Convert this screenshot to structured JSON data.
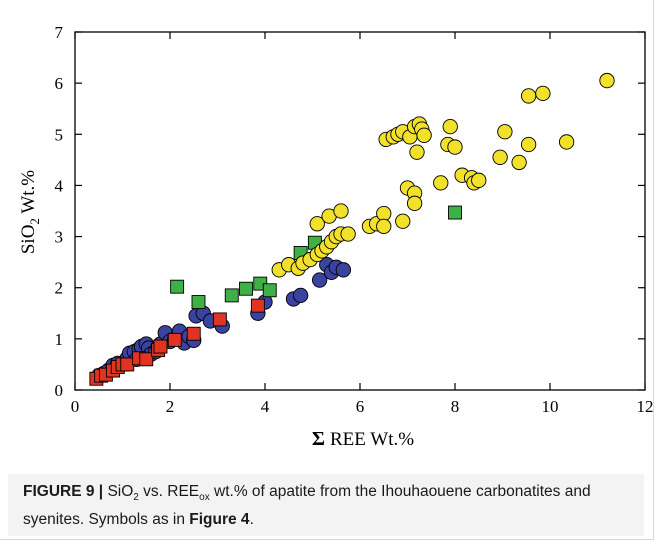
{
  "chart_data": {
    "type": "scatter",
    "title": "",
    "xlabel_symbol": "Σ",
    "xlabel": "REE Wt.%",
    "ylabel_main": "SiO",
    "ylabel_sub": "2",
    "ylabel_rest": " Wt.%",
    "xlim": [
      0,
      12
    ],
    "ylim": [
      0,
      7
    ],
    "xticks": [
      0,
      2,
      4,
      6,
      8,
      10,
      12
    ],
    "yticks": [
      0,
      1,
      2,
      3,
      4,
      5,
      6,
      7
    ],
    "grid": false,
    "series": [
      {
        "marker": "circle",
        "color": "#3a43a0",
        "points": [
          [
            0.5,
            0.28
          ],
          [
            0.6,
            0.32
          ],
          [
            0.7,
            0.38
          ],
          [
            0.8,
            0.48
          ],
          [
            0.9,
            0.52
          ],
          [
            1.0,
            0.5
          ],
          [
            1.1,
            0.62
          ],
          [
            1.15,
            0.72
          ],
          [
            1.25,
            0.75
          ],
          [
            1.3,
            0.6
          ],
          [
            1.35,
            0.8
          ],
          [
            1.4,
            0.85
          ],
          [
            1.5,
            0.9
          ],
          [
            1.55,
            0.82
          ],
          [
            1.6,
            0.7
          ],
          [
            1.7,
            0.75
          ],
          [
            1.75,
            0.85
          ],
          [
            1.8,
            0.9
          ],
          [
            1.9,
            1.12
          ],
          [
            2.0,
            0.95
          ],
          [
            2.1,
            1.0
          ],
          [
            2.2,
            1.15
          ],
          [
            2.3,
            0.92
          ],
          [
            2.4,
            1.05
          ],
          [
            2.5,
            0.97
          ],
          [
            2.55,
            1.45
          ],
          [
            2.7,
            1.5
          ],
          [
            2.85,
            1.35
          ],
          [
            3.1,
            1.25
          ],
          [
            3.85,
            1.5
          ],
          [
            4.0,
            1.72
          ],
          [
            4.6,
            1.78
          ],
          [
            4.75,
            1.85
          ],
          [
            5.15,
            2.15
          ],
          [
            5.3,
            2.45
          ],
          [
            5.4,
            2.3
          ],
          [
            5.5,
            2.4
          ],
          [
            5.65,
            2.35
          ]
        ]
      },
      {
        "marker": "square",
        "color": "#e03322",
        "points": [
          [
            0.45,
            0.22
          ],
          [
            0.55,
            0.28
          ],
          [
            0.65,
            0.3
          ],
          [
            0.8,
            0.38
          ],
          [
            0.9,
            0.45
          ],
          [
            1.0,
            0.5
          ],
          [
            1.1,
            0.5
          ],
          [
            1.35,
            0.62
          ],
          [
            1.5,
            0.6
          ],
          [
            1.75,
            0.78
          ],
          [
            1.8,
            0.85
          ],
          [
            2.1,
            0.98
          ],
          [
            2.5,
            1.1
          ],
          [
            3.05,
            1.38
          ],
          [
            3.85,
            1.65
          ]
        ]
      },
      {
        "marker": "square",
        "color": "#3fb045",
        "points": [
          [
            2.15,
            2.02
          ],
          [
            2.6,
            1.72
          ],
          [
            3.3,
            1.85
          ],
          [
            3.6,
            1.98
          ],
          [
            3.9,
            2.08
          ],
          [
            4.1,
            1.95
          ],
          [
            4.75,
            2.68
          ],
          [
            5.05,
            2.88
          ],
          [
            8.0,
            3.47
          ]
        ]
      },
      {
        "marker": "circle",
        "color": "#f2e12a",
        "points": [
          [
            4.3,
            2.35
          ],
          [
            4.5,
            2.45
          ],
          [
            4.7,
            2.38
          ],
          [
            4.8,
            2.48
          ],
          [
            4.95,
            2.55
          ],
          [
            5.1,
            2.65
          ],
          [
            5.2,
            2.72
          ],
          [
            5.3,
            2.8
          ],
          [
            5.4,
            2.9
          ],
          [
            5.5,
            3.0
          ],
          [
            5.6,
            3.05
          ],
          [
            5.75,
            3.05
          ],
          [
            5.1,
            3.25
          ],
          [
            5.35,
            3.4
          ],
          [
            5.6,
            3.5
          ],
          [
            6.2,
            3.2
          ],
          [
            6.35,
            3.25
          ],
          [
            6.5,
            3.45
          ],
          [
            6.5,
            3.2
          ],
          [
            6.55,
            4.9
          ],
          [
            6.7,
            4.95
          ],
          [
            6.8,
            5.0
          ],
          [
            6.9,
            5.05
          ],
          [
            7.05,
            4.95
          ],
          [
            7.15,
            5.15
          ],
          [
            7.25,
            5.2
          ],
          [
            7.3,
            5.1
          ],
          [
            7.35,
            4.98
          ],
          [
            7.2,
            4.65
          ],
          [
            6.9,
            3.3
          ],
          [
            7.0,
            3.95
          ],
          [
            7.15,
            3.85
          ],
          [
            7.15,
            3.65
          ],
          [
            7.7,
            4.05
          ],
          [
            7.85,
            4.8
          ],
          [
            7.9,
            5.15
          ],
          [
            8.0,
            4.75
          ],
          [
            8.15,
            4.2
          ],
          [
            8.35,
            4.15
          ],
          [
            8.4,
            4.05
          ],
          [
            8.5,
            4.1
          ],
          [
            8.95,
            4.55
          ],
          [
            9.05,
            5.05
          ],
          [
            9.35,
            4.45
          ],
          [
            9.55,
            4.8
          ],
          [
            9.55,
            5.75
          ],
          [
            9.85,
            5.8
          ],
          [
            10.35,
            4.85
          ],
          [
            11.2,
            6.05
          ]
        ]
      }
    ]
  },
  "caption": {
    "figure_label": "FIGURE 9 |",
    "text_1": " SiO",
    "text_sub_1": "2",
    "text_2": " vs. REE",
    "text_sub_2": "ox",
    "text_3": " wt.% of apatite from the Ihouhaouene carbonatites and syenites. Symbols as in ",
    "ref": "Figure 4",
    "end": "."
  }
}
